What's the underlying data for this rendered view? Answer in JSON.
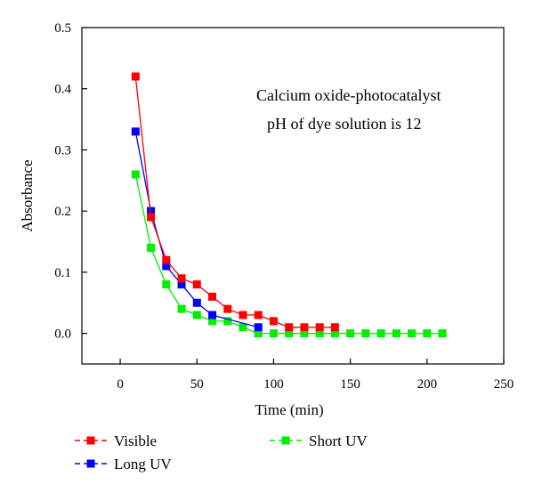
{
  "chart_data": {
    "type": "line",
    "title": "",
    "xlabel": "Time (min)",
    "ylabel": "Absorbance",
    "xlim": [
      -25,
      250
    ],
    "ylim": [
      -0.05,
      0.5
    ],
    "xticks": [
      0,
      50,
      100,
      150,
      200,
      250
    ],
    "yticks": [
      0.0,
      0.1,
      0.2,
      0.3,
      0.4,
      0.5
    ],
    "xtick_labels": [
      "0",
      "50",
      "100",
      "150",
      "200",
      "250"
    ],
    "ytick_labels": [
      "0.0",
      "0.1",
      "0.2",
      "0.3",
      "0.4",
      "0.5"
    ],
    "grid": false,
    "legend_position": "bottom",
    "annotations": [
      "Calcium oxide-photocatalyst",
      "pH of dye solution is 12"
    ],
    "series": [
      {
        "name": "Visible",
        "color": "#ff0000",
        "line_style": "dashed",
        "marker": "square",
        "x": [
          10,
          20,
          30,
          40,
          50,
          60,
          70,
          80,
          90,
          100,
          110,
          120,
          130,
          140
        ],
        "y": [
          0.42,
          0.19,
          0.12,
          0.09,
          0.08,
          0.06,
          0.04,
          0.03,
          0.03,
          0.02,
          0.01,
          0.01,
          0.01,
          0.01
        ]
      },
      {
        "name": "Long UV",
        "color": "#0000ff",
        "line_style": "dashed",
        "marker": "square",
        "x": [
          10,
          20,
          30,
          40,
          50,
          60,
          90
        ],
        "y": [
          0.33,
          0.2,
          0.11,
          0.08,
          0.05,
          0.03,
          0.01
        ]
      },
      {
        "name": "Short UV",
        "color": "#00ee00",
        "line_style": "dashed",
        "marker": "square",
        "x": [
          10,
          20,
          30,
          40,
          50,
          60,
          70,
          80,
          90,
          100,
          110,
          120,
          130,
          140,
          150,
          160,
          170,
          180,
          190,
          200,
          210
        ],
        "y": [
          0.26,
          0.14,
          0.08,
          0.04,
          0.03,
          0.02,
          0.02,
          0.01,
          0.0,
          0.0,
          0.0,
          0.0,
          0.0,
          0.0,
          0.0,
          0.0,
          0.0,
          0.0,
          0.0,
          0.0,
          0.0
        ]
      }
    ]
  }
}
